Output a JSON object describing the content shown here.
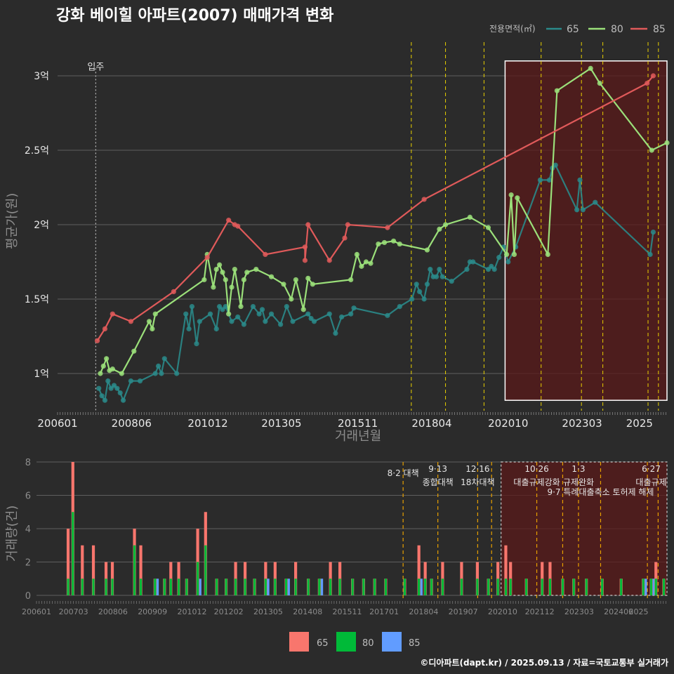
{
  "title": "강화 베이힐 아파트(2007) 매매가격 변화",
  "caption": "©디아파트(dapt.kr) / 2025.09.13 / 자료=국토교통부 실거래가",
  "colors": {
    "s65": "#2a8a8a",
    "s80": "#9be07a",
    "s85": "#e05a5a",
    "b65": "#f8766d",
    "b80": "#00ba38",
    "b85": "#619cff",
    "vline": "#e8d000",
    "vline_bottom": "#e8a000",
    "highlight": "#5a1a1a"
  },
  "chart_data": [
    {
      "type": "line",
      "title": "강화 베이힐 아파트(2007) 매매가격 변화",
      "xlabel": "거래년월",
      "ylabel": "평균가(원)",
      "ylim": [
        0.75,
        3.25
      ],
      "y_ticks": [
        {
          "v": 1.0,
          "label": "1억"
        },
        {
          "v": 1.5,
          "label": "1.5억"
        },
        {
          "v": 2.0,
          "label": "2억"
        },
        {
          "v": 2.5,
          "label": "2.5억"
        },
        {
          "v": 3.0,
          "label": "3억"
        }
      ],
      "x_ticks": [
        "200601",
        "200806",
        "201012",
        "201305",
        "201511",
        "201804",
        "202010",
        "202303",
        "2025"
      ],
      "legend_title": "전용면적(㎡)",
      "legend": [
        "65",
        "80",
        "85"
      ],
      "move_in_label": "입주",
      "move_in_x": 2007.25,
      "policy_lines": [
        2017.58,
        2018.7,
        2019.96,
        2021.83,
        2023.15,
        2023.85,
        2025.33,
        2025.67
      ],
      "highlight_range": {
        "x0": 2020.65,
        "x1": 2025.95,
        "y0": 0.82,
        "y1": 3.1
      },
      "series": [
        {
          "name": "65",
          "points": [
            [
              2007.35,
              0.9
            ],
            [
              2007.45,
              0.85
            ],
            [
              2007.55,
              0.82
            ],
            [
              2007.65,
              0.95
            ],
            [
              2007.75,
              0.9
            ],
            [
              2007.85,
              0.92
            ],
            [
              2007.95,
              0.9
            ],
            [
              2008.05,
              0.87
            ],
            [
              2008.15,
              0.82
            ],
            [
              2008.4,
              0.95
            ],
            [
              2008.7,
              0.95
            ],
            [
              2009.2,
              1.0
            ],
            [
              2009.3,
              1.05
            ],
            [
              2009.4,
              1.0
            ],
            [
              2009.5,
              1.1
            ],
            [
              2009.9,
              1.0
            ],
            [
              2010.2,
              1.4
            ],
            [
              2010.3,
              1.3
            ],
            [
              2010.4,
              1.45
            ],
            [
              2010.55,
              1.2
            ],
            [
              2010.65,
              1.35
            ],
            [
              2011.0,
              1.4
            ],
            [
              2011.2,
              1.3
            ],
            [
              2011.3,
              1.45
            ],
            [
              2011.4,
              1.43
            ],
            [
              2011.5,
              1.45
            ],
            [
              2011.7,
              1.35
            ],
            [
              2011.9,
              1.38
            ],
            [
              2012.1,
              1.33
            ],
            [
              2012.4,
              1.45
            ],
            [
              2012.6,
              1.4
            ],
            [
              2012.7,
              1.43
            ],
            [
              2012.8,
              1.35
            ],
            [
              2013.0,
              1.4
            ],
            [
              2013.3,
              1.33
            ],
            [
              2013.5,
              1.45
            ],
            [
              2013.7,
              1.35
            ],
            [
              2014.2,
              1.4
            ],
            [
              2014.3,
              1.37
            ],
            [
              2014.4,
              1.35
            ],
            [
              2014.9,
              1.4
            ],
            [
              2015.1,
              1.27
            ],
            [
              2015.3,
              1.38
            ],
            [
              2015.6,
              1.4
            ],
            [
              2015.7,
              1.44
            ],
            [
              2016.8,
              1.39
            ],
            [
              2017.2,
              1.45
            ],
            [
              2017.6,
              1.5
            ],
            [
              2017.75,
              1.6
            ],
            [
              2017.85,
              1.55
            ],
            [
              2018.0,
              1.5
            ],
            [
              2018.1,
              1.6
            ],
            [
              2018.2,
              1.7
            ],
            [
              2018.3,
              1.65
            ],
            [
              2018.4,
              1.65
            ],
            [
              2018.5,
              1.7
            ],
            [
              2018.6,
              1.65
            ],
            [
              2018.9,
              1.62
            ],
            [
              2019.4,
              1.7
            ],
            [
              2019.5,
              1.75
            ],
            [
              2019.6,
              1.75
            ],
            [
              2020.1,
              1.7
            ],
            [
              2020.2,
              1.72
            ],
            [
              2020.3,
              1.7
            ],
            [
              2020.45,
              1.78
            ],
            [
              2020.6,
              1.85
            ],
            [
              2020.75,
              1.75
            ],
            [
              2021.0,
              1.85
            ],
            [
              2021.8,
              2.3
            ],
            [
              2022.1,
              2.3
            ],
            [
              2022.2,
              2.38
            ],
            [
              2022.3,
              2.4
            ],
            [
              2023.0,
              2.1
            ],
            [
              2023.1,
              2.3
            ],
            [
              2023.2,
              2.1
            ],
            [
              2023.6,
              2.15
            ],
            [
              2025.4,
              1.8
            ],
            [
              2025.5,
              1.95
            ]
          ]
        },
        {
          "name": "80",
          "points": [
            [
              2007.4,
              1.0
            ],
            [
              2007.5,
              1.05
            ],
            [
              2007.6,
              1.1
            ],
            [
              2007.7,
              1.02
            ],
            [
              2007.8,
              1.03
            ],
            [
              2008.1,
              1.0
            ],
            [
              2008.5,
              1.15
            ],
            [
              2009.0,
              1.35
            ],
            [
              2009.1,
              1.3
            ],
            [
              2009.2,
              1.4
            ],
            [
              2010.8,
              1.63
            ],
            [
              2010.9,
              1.8
            ],
            [
              2011.1,
              1.58
            ],
            [
              2011.2,
              1.7
            ],
            [
              2011.3,
              1.73
            ],
            [
              2011.4,
              1.68
            ],
            [
              2011.5,
              1.63
            ],
            [
              2011.6,
              1.4
            ],
            [
              2011.7,
              1.58
            ],
            [
              2011.8,
              1.7
            ],
            [
              2012.0,
              1.45
            ],
            [
              2012.1,
              1.63
            ],
            [
              2012.2,
              1.68
            ],
            [
              2012.5,
              1.7
            ],
            [
              2013.0,
              1.65
            ],
            [
              2013.4,
              1.6
            ],
            [
              2013.65,
              1.5
            ],
            [
              2013.8,
              1.63
            ],
            [
              2014.05,
              1.43
            ],
            [
              2014.2,
              1.64
            ],
            [
              2014.35,
              1.6
            ],
            [
              2015.6,
              1.63
            ],
            [
              2015.8,
              1.8
            ],
            [
              2015.95,
              1.72
            ],
            [
              2016.1,
              1.75
            ],
            [
              2016.25,
              1.74
            ],
            [
              2016.5,
              1.87
            ],
            [
              2016.7,
              1.88
            ],
            [
              2017.0,
              1.89
            ],
            [
              2017.2,
              1.87
            ],
            [
              2018.1,
              1.83
            ],
            [
              2018.5,
              1.97
            ],
            [
              2018.7,
              2.0
            ],
            [
              2019.5,
              2.05
            ],
            [
              2020.1,
              1.98
            ],
            [
              2020.7,
              1.8
            ],
            [
              2020.85,
              2.2
            ],
            [
              2020.95,
              1.8
            ],
            [
              2021.05,
              2.18
            ],
            [
              2022.05,
              1.8
            ],
            [
              2022.35,
              2.9
            ],
            [
              2023.45,
              3.05
            ],
            [
              2023.75,
              2.95
            ],
            [
              2025.45,
              2.5
            ],
            [
              2025.95,
              2.55
            ]
          ]
        },
        {
          "name": "85",
          "points": [
            [
              2007.3,
              1.22
            ],
            [
              2007.55,
              1.3
            ],
            [
              2007.8,
              1.4
            ],
            [
              2008.4,
              1.35
            ],
            [
              2009.8,
              1.55
            ],
            [
              2010.9,
              1.78
            ],
            [
              2011.6,
              2.03
            ],
            [
              2011.8,
              2.0
            ],
            [
              2011.9,
              1.99
            ],
            [
              2012.8,
              1.8
            ],
            [
              2014.1,
              1.85
            ],
            [
              2014.2,
              2.0
            ],
            [
              2014.1,
              1.76
            ],
            [
              2014.9,
              1.76
            ],
            [
              2015.4,
              1.91
            ],
            [
              2015.5,
              2.0
            ],
            [
              2016.8,
              1.98
            ],
            [
              2018.0,
              2.17
            ],
            [
              2025.3,
              2.95
            ],
            [
              2025.5,
              3.0
            ]
          ]
        }
      ]
    },
    {
      "type": "bar",
      "ylabel": "거래량(건)",
      "ylim": [
        0,
        8
      ],
      "y_ticks": [
        0,
        2,
        4,
        6,
        8
      ],
      "x_ticks": [
        "200601",
        "200703",
        "200806",
        "200909",
        "201012",
        "201202",
        "201305",
        "201408",
        "201511",
        "201701",
        "201804",
        "201907",
        "202010",
        "202112",
        "202303",
        "202406",
        "2025"
      ],
      "legend": [
        "65",
        "80",
        "85"
      ],
      "policy_lines": [
        2017.6,
        2018.7,
        2019.96,
        2020.4,
        2021.83,
        2022.65,
        2023.15,
        2023.85,
        2025.33,
        2025.67
      ],
      "policy_labels": [
        {
          "x": 2017.6,
          "line1": "8·2 대책",
          "line2": ""
        },
        {
          "x": 2018.7,
          "line1": "9·13",
          "line2": "종합대책"
        },
        {
          "x": 2019.96,
          "line1": "12·16",
          "line2": "18차대책"
        },
        {
          "x": 2021.83,
          "line1": "10·26",
          "line2": "대출규제강화"
        },
        {
          "x": 2023.15,
          "line1": "1·3",
          "line2": "규제완화"
        },
        {
          "x": 2023.85,
          "line1": "",
          "line2": "9·7 특례대출축소 토허제 해제"
        },
        {
          "x": 2025.45,
          "line1": "6·27",
          "line2": "대출규제"
        }
      ],
      "highlight_range": {
        "x0": 2020.7,
        "x1": 2025.95
      },
      "bars": [
        [
          2007.0,
          4,
          1,
          1,
          0
        ],
        [
          2007.15,
          8,
          5,
          1,
          0
        ],
        [
          2007.45,
          3,
          1,
          1,
          0
        ],
        [
          2007.8,
          3,
          1,
          1,
          0
        ],
        [
          2008.2,
          2,
          1,
          1,
          0
        ],
        [
          2008.4,
          2,
          1,
          0,
          0
        ],
        [
          2009.1,
          4,
          3,
          1,
          0
        ],
        [
          2009.3,
          3,
          1,
          1,
          0
        ],
        [
          2009.75,
          1,
          1,
          0,
          1
        ],
        [
          2010.05,
          1,
          1,
          0,
          0
        ],
        [
          2010.25,
          2,
          1,
          1,
          0
        ],
        [
          2010.5,
          2,
          1,
          1,
          0
        ],
        [
          2010.75,
          1,
          1,
          0,
          0
        ],
        [
          2011.1,
          4,
          2,
          1,
          1
        ],
        [
          2011.35,
          5,
          3,
          1,
          0
        ],
        [
          2011.7,
          1,
          1,
          0,
          0
        ],
        [
          2012.0,
          1,
          1,
          0,
          0
        ],
        [
          2012.3,
          2,
          1,
          1,
          0
        ],
        [
          2012.6,
          2,
          1,
          1,
          0
        ],
        [
          2012.9,
          1,
          1,
          1,
          0
        ],
        [
          2013.25,
          2,
          1,
          1,
          1
        ],
        [
          2013.55,
          2,
          1,
          1,
          0
        ],
        [
          2013.9,
          1,
          1,
          0,
          1
        ],
        [
          2014.2,
          2,
          1,
          1,
          0
        ],
        [
          2014.6,
          1,
          1,
          1,
          0
        ],
        [
          2014.95,
          1,
          1,
          0,
          1
        ],
        [
          2015.3,
          2,
          1,
          1,
          0
        ],
        [
          2015.6,
          2,
          1,
          1,
          0
        ],
        [
          2016.0,
          1,
          1,
          1,
          0
        ],
        [
          2016.35,
          1,
          1,
          0,
          0
        ],
        [
          2016.7,
          1,
          1,
          1,
          0
        ],
        [
          2017.05,
          1,
          1,
          0,
          0
        ],
        [
          2017.65,
          1,
          1,
          0,
          0
        ],
        [
          2018.1,
          3,
          1,
          1,
          1
        ],
        [
          2018.3,
          2,
          1,
          1,
          0
        ],
        [
          2018.5,
          1,
          1,
          0,
          0
        ],
        [
          2018.85,
          2,
          1,
          1,
          0
        ],
        [
          2019.45,
          2,
          1,
          0,
          0
        ],
        [
          2019.95,
          2,
          1,
          1,
          0
        ],
        [
          2020.3,
          1,
          1,
          1,
          0
        ],
        [
          2020.6,
          2,
          1,
          1,
          0
        ],
        [
          2020.85,
          3,
          1,
          1,
          0
        ],
        [
          2021.0,
          2,
          1,
          1,
          0
        ],
        [
          2021.5,
          1,
          1,
          0,
          0
        ],
        [
          2022.0,
          2,
          1,
          1,
          0
        ],
        [
          2022.25,
          2,
          1,
          1,
          0
        ],
        [
          2022.65,
          1,
          1,
          0,
          0
        ],
        [
          2023.0,
          1,
          1,
          0,
          0
        ],
        [
          2023.4,
          1,
          1,
          1,
          0
        ],
        [
          2023.9,
          1,
          1,
          0,
          0
        ],
        [
          2024.5,
          1,
          1,
          0,
          0
        ],
        [
          2025.2,
          1,
          1,
          0,
          1
        ],
        [
          2025.45,
          1,
          1,
          0,
          1
        ],
        [
          2025.6,
          2,
          1,
          1,
          0
        ],
        [
          2025.85,
          1,
          1,
          1,
          0
        ]
      ]
    }
  ],
  "bottom_legend": [
    "65",
    "80",
    "85"
  ]
}
